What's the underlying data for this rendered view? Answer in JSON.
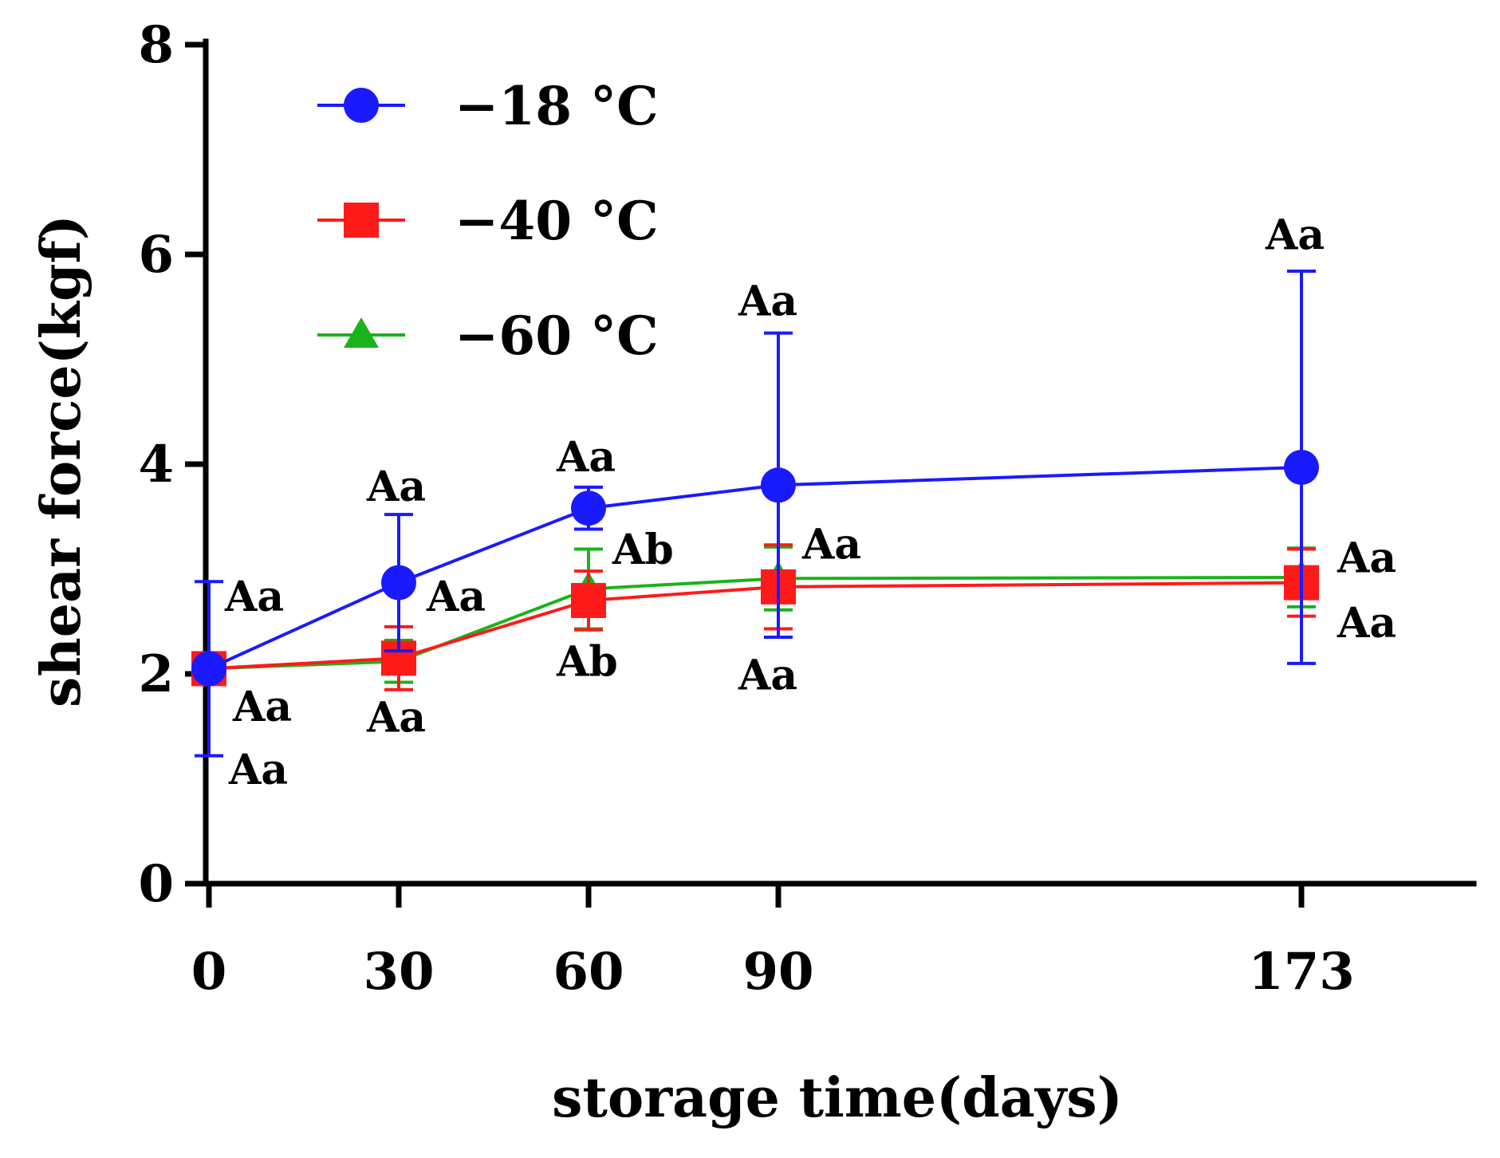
{
  "chart_data": {
    "type": "line",
    "xlabel": "storage time(days)",
    "ylabel": "shear force(kgf)",
    "x_categories": [
      "0",
      "30",
      "60",
      "90",
      "173"
    ],
    "ylim": [
      0,
      8
    ],
    "yticks": [
      "0",
      "2",
      "4",
      "6",
      "8"
    ],
    "legend_position": "top-left",
    "series": [
      {
        "name": "−18 °C",
        "color": "#1a1aff",
        "marker": "circle",
        "values": [
          2.05,
          2.87,
          3.58,
          3.8,
          3.97
        ],
        "error": [
          0.83,
          0.65,
          0.2,
          1.45,
          1.87
        ]
      },
      {
        "name": "−40 °C",
        "color": "#ff1a1a",
        "marker": "square",
        "values": [
          2.05,
          2.15,
          2.7,
          2.83,
          2.87
        ],
        "error": [
          0.05,
          0.3,
          0.28,
          0.4,
          0.32
        ]
      },
      {
        "name": "−60 °C",
        "color": "#1ab31a",
        "marker": "triangle",
        "values": [
          2.05,
          2.12,
          2.81,
          2.91,
          2.92
        ],
        "error": [
          0.05,
          0.2,
          0.38,
          0.3,
          0.28
        ]
      }
    ],
    "annotations": [
      {
        "text": "Aa",
        "x_index": 0,
        "y": 2.6,
        "dx": 20
      },
      {
        "text": "Aa",
        "x_index": 0,
        "y": 1.55,
        "dx": 30
      },
      {
        "text": "Aa",
        "x_index": 0,
        "y": 0.95,
        "dx": 25
      },
      {
        "text": "Aa",
        "x_index": 1,
        "y": 3.65,
        "dx": -40
      },
      {
        "text": "Aa",
        "x_index": 1,
        "y": 2.6,
        "dx": 35
      },
      {
        "text": "Aa",
        "x_index": 1,
        "y": 1.45,
        "dx": -40
      },
      {
        "text": "Aa",
        "x_index": 2,
        "y": 3.93,
        "dx": -40
      },
      {
        "text": "Ab",
        "x_index": 2,
        "y": 3.05,
        "dx": 30
      },
      {
        "text": "Ab",
        "x_index": 2,
        "y": 1.98,
        "dx": -40
      },
      {
        "text": "Aa",
        "x_index": 3,
        "y": 5.42,
        "dx": -50
      },
      {
        "text": "Aa",
        "x_index": 3,
        "y": 3.1,
        "dx": 30
      },
      {
        "text": "Aa",
        "x_index": 3,
        "y": 1.85,
        "dx": -50
      },
      {
        "text": "Aa",
        "x_index": 4,
        "y": 6.05,
        "dx": -45
      },
      {
        "text": "Aa",
        "x_index": 4,
        "y": 2.97,
        "dx": 45
      },
      {
        "text": "Aa",
        "x_index": 4,
        "y": 2.35,
        "dx": 45
      }
    ]
  }
}
